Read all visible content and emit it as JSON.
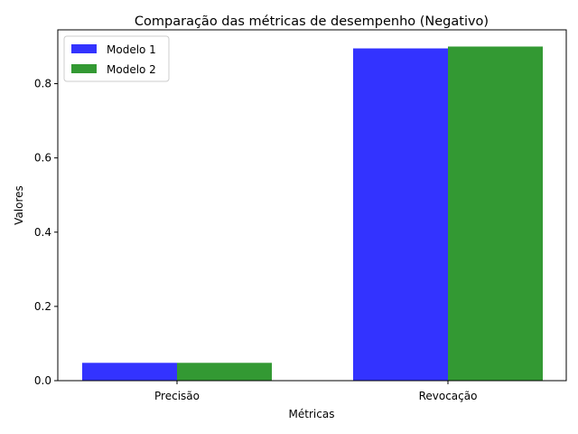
{
  "chart_data": {
    "type": "bar",
    "title": "Comparação das métricas de desempenho (Negativo)",
    "xlabel": "Métricas",
    "ylabel": "Valores",
    "categories": [
      "Precisão",
      "Revocação"
    ],
    "series": [
      {
        "name": "Modelo 1",
        "values": [
          0.048,
          0.895
        ],
        "color": "#3333ff"
      },
      {
        "name": "Modelo 2",
        "values": [
          0.048,
          0.9
        ],
        "color": "#339933"
      }
    ],
    "ylim": [
      0,
      0.945
    ],
    "yticks": [
      0.0,
      0.2,
      0.4,
      0.6,
      0.8
    ],
    "ytick_labels": [
      "0.0",
      "0.2",
      "0.4",
      "0.6",
      "0.8"
    ],
    "legend_position": "top-left",
    "grid": false
  }
}
